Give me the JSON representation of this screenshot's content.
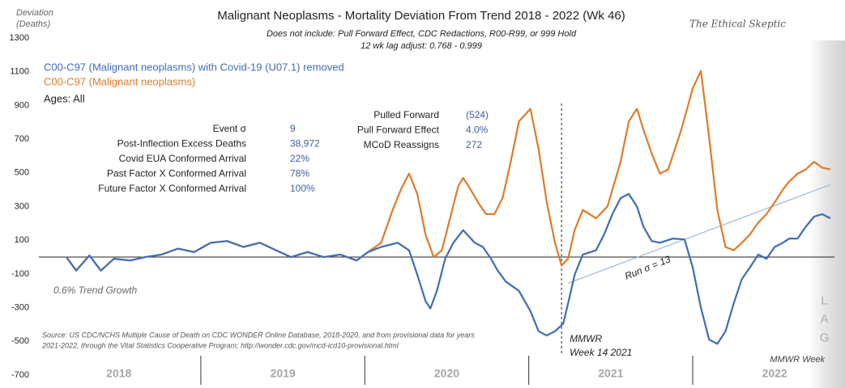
{
  "chart_data": {
    "type": "line",
    "title": "Malignant Neoplasms - Mortality Deviation From Trend  2018 - 2022 (Wk 46)",
    "subtitle": [
      "Does not include: Pull Forward Effect,  CDC Redactions, R00-R99, or 999 Hold",
      "12 wk lag adjust: 0.768 - 0.999"
    ],
    "y_label": [
      "Deviation",
      "(Deaths)"
    ],
    "watermark": "The Ethical Skeptic",
    "ylim": [
      -700,
      1300
    ],
    "yticks": [
      -700,
      -500,
      -300,
      -100,
      100,
      300,
      500,
      700,
      900,
      1100,
      1300
    ],
    "xlim": [
      2018.18,
      2022.84
    ],
    "xticks": [
      {
        "value": 2018.5,
        "label": "2018"
      },
      {
        "value": 2019.5,
        "label": "2019"
      },
      {
        "value": 2020.5,
        "label": "2020"
      },
      {
        "value": 2021.5,
        "label": "2021"
      },
      {
        "value": 2022.5,
        "label": "2022"
      }
    ],
    "x_label": "MMWR Week",
    "series": [
      {
        "name": "C00-C97 (Malignant neoplasms)",
        "color": "#e07b29",
        "x": [
          2018.18,
          2018.24,
          2018.32,
          2018.39,
          2018.47,
          2018.57,
          2018.66,
          2018.76,
          2018.86,
          2018.96,
          2019.06,
          2019.16,
          2019.26,
          2019.36,
          2019.46,
          2019.55,
          2019.65,
          2019.75,
          2019.85,
          2019.95,
          2020.02,
          2020.1,
          2020.17,
          2020.22,
          2020.27,
          2020.32,
          2020.37,
          2020.42,
          2020.47,
          2020.52,
          2020.57,
          2020.6,
          2020.64,
          2020.69,
          2020.74,
          2020.79,
          2020.84,
          2020.89,
          2020.94,
          2021.01,
          2021.06,
          2021.11,
          2021.16,
          2021.2,
          2021.24,
          2021.28,
          2021.33,
          2021.41,
          2021.48,
          2021.56,
          2021.61,
          2021.66,
          2021.7,
          2021.75,
          2021.8,
          2021.85,
          2021.93,
          2022.0,
          2022.05,
          2022.1,
          2022.15,
          2022.2,
          2022.25,
          2022.3,
          2022.35,
          2022.4,
          2022.45,
          2022.5,
          2022.55,
          2022.59,
          2022.64,
          2022.69,
          2022.74,
          2022.79,
          2022.84
        ],
        "values": [
          0,
          -80,
          10,
          -80,
          -10,
          -20,
          0,
          15,
          50,
          30,
          85,
          95,
          60,
          85,
          40,
          0,
          30,
          0,
          15,
          -20,
          30,
          85,
          280,
          400,
          495,
          375,
          135,
          0,
          40,
          230,
          420,
          470,
          410,
          325,
          255,
          255,
          350,
          565,
          805,
          880,
          640,
          325,
          85,
          -50,
          -10,
          160,
          280,
          230,
          300,
          565,
          805,
          880,
          755,
          615,
          495,
          520,
          755,
          1000,
          1105,
          710,
          280,
          60,
          40,
          85,
          135,
          205,
          255,
          325,
          400,
          450,
          495,
          520,
          565,
          530,
          520
        ]
      },
      {
        "name": "C00-C97 (Malignant neoplasms) with Covid-19 (U07.1) removed",
        "color": "#3f6db5",
        "x": [
          2018.18,
          2018.24,
          2018.32,
          2018.39,
          2018.47,
          2018.57,
          2018.66,
          2018.76,
          2018.86,
          2018.96,
          2019.06,
          2019.16,
          2019.26,
          2019.36,
          2019.46,
          2019.55,
          2019.65,
          2019.75,
          2019.85,
          2019.95,
          2020.02,
          2020.1,
          2020.2,
          2020.27,
          2020.32,
          2020.37,
          2020.4,
          2020.44,
          2020.49,
          2020.54,
          2020.6,
          2020.67,
          2020.72,
          2020.77,
          2020.81,
          2020.86,
          2020.94,
          2021.01,
          2021.06,
          2021.11,
          2021.16,
          2021.21,
          2021.24,
          2021.28,
          2021.33,
          2021.41,
          2021.46,
          2021.51,
          2021.56,
          2021.61,
          2021.66,
          2021.7,
          2021.75,
          2021.8,
          2021.88,
          2021.95,
          2022.0,
          2022.05,
          2022.1,
          2022.15,
          2022.2,
          2022.25,
          2022.3,
          2022.35,
          2022.4,
          2022.45,
          2022.5,
          2022.55,
          2022.59,
          2022.64,
          2022.69,
          2022.74,
          2022.79,
          2022.84
        ],
        "values": [
          0,
          -80,
          10,
          -80,
          -10,
          -20,
          0,
          15,
          50,
          30,
          85,
          95,
          60,
          85,
          40,
          0,
          30,
          0,
          15,
          -20,
          30,
          60,
          85,
          40,
          -105,
          -260,
          -305,
          -200,
          -10,
          85,
          160,
          85,
          60,
          -10,
          -80,
          -145,
          -200,
          -320,
          -440,
          -465,
          -440,
          -395,
          -275,
          -105,
          15,
          40,
          135,
          255,
          350,
          375,
          300,
          180,
          95,
          85,
          110,
          105,
          -60,
          -300,
          -490,
          -515,
          -440,
          -275,
          -130,
          -60,
          15,
          -10,
          60,
          85,
          110,
          110,
          180,
          240,
          255,
          230
        ]
      }
    ],
    "legend_order": [
      1,
      0
    ],
    "ages": "Ages: All",
    "trend_line": {
      "color": "#9db6dc",
      "x": [
        2021.24,
        2022.84
      ],
      "values": [
        -155,
        430
      ],
      "label": "Run σ = 13"
    },
    "marker_line": {
      "x": 2021.2,
      "label": [
        "MMWR",
        "Week 14 2021"
      ]
    },
    "trend_growth": "0.6% Trend Growth",
    "side_label": "LAG",
    "stats_left": [
      {
        "label": "Event σ",
        "value": "9"
      },
      {
        "label": "Post-Inflection Excess Deaths",
        "value": "38,972"
      },
      {
        "label": "Covid EUA Conformed Arrival",
        "value": "22%"
      },
      {
        "label": "Past Factor X Conformed Arrival",
        "value": "78%"
      },
      {
        "label": "Future Factor X Conformed Arrival",
        "value": "100%"
      }
    ],
    "stats_right": [
      {
        "label": "Pulled Forward",
        "value": "(524)"
      },
      {
        "label": "Pull Forward Effect",
        "value": "4.0%"
      },
      {
        "label": "MCoD Reassigns",
        "value": "272"
      }
    ],
    "source": [
      "Source: US CDC/NCHS Multiple Cause of Death on CDC WONDER Online Database, 2018-2020, and from provisional data for years",
      "2021-2022, through the Vital Statistics Cooperative Program; http://wonder.cdc.gov/mcd-icd10-provisional.html"
    ]
  }
}
